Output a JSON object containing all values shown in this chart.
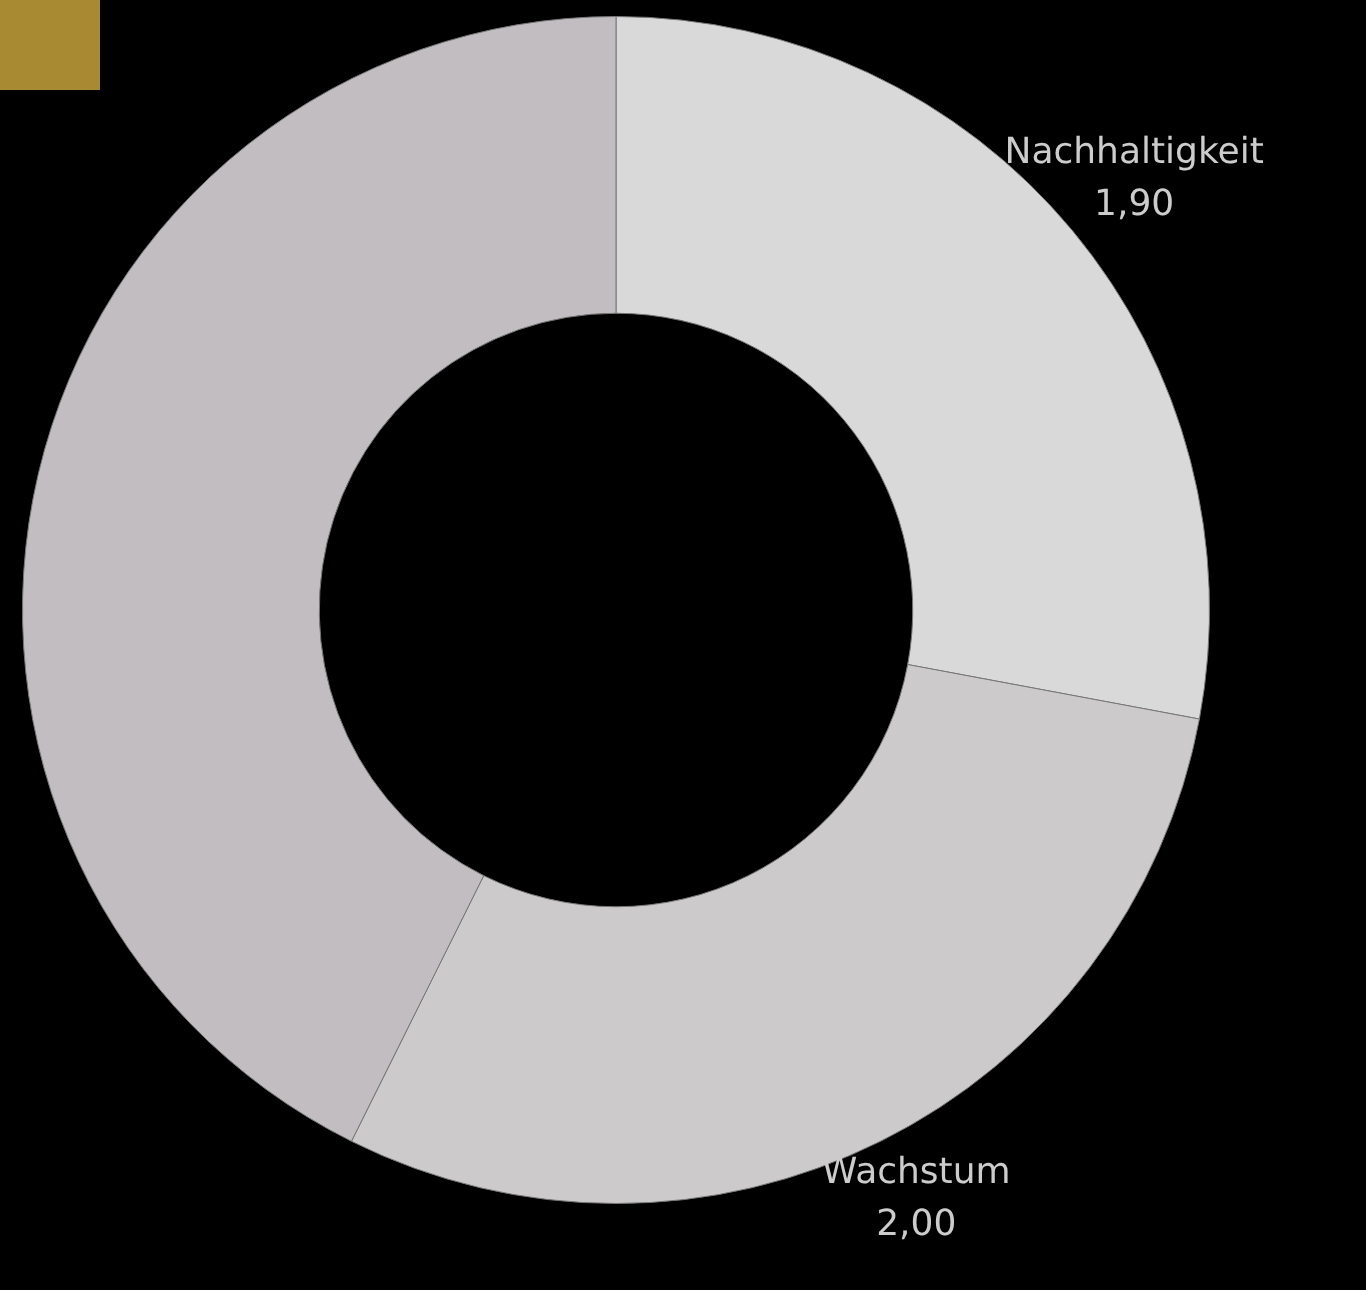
{
  "chart_data": {
    "type": "donut",
    "categories": [
      "Nachhaltigkeit",
      "Wachstum",
      null
    ],
    "values": [
      1.9,
      2.0,
      2.9
    ],
    "value_labels": [
      "1,90",
      "2,00",
      null
    ],
    "colors": [
      "#d9d9d9",
      "#cdcacc",
      "#c2bdc0"
    ],
    "legend": false
  }
}
